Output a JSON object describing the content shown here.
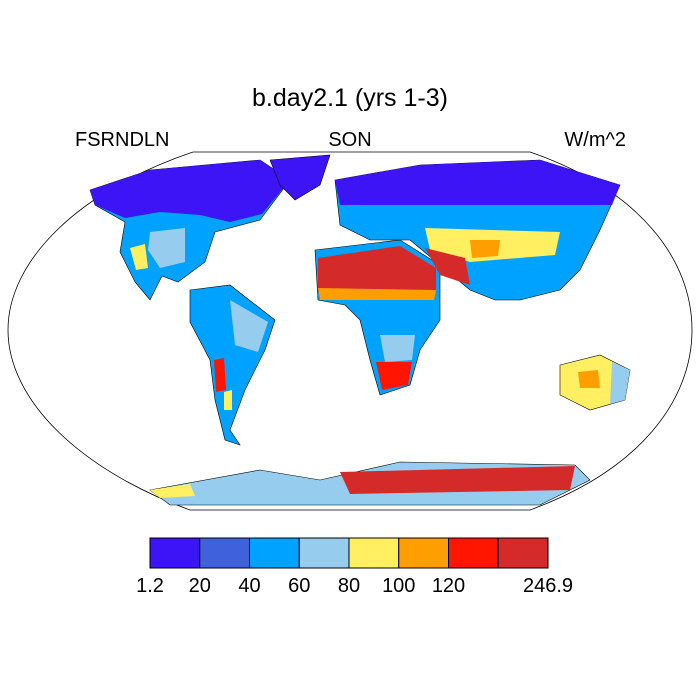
{
  "title": "b.day2.1 (yrs 1-3)",
  "left_string": "FSRNDLN",
  "center_string": "SON",
  "right_string": "W/m^2",
  "colorbar": {
    "colors": [
      "#3c14f5",
      "#3f62dc",
      "#00a2ff",
      "#96cdee",
      "#ffef61",
      "#ff9e00",
      "#ff1500",
      "#d42a2a"
    ],
    "labels": [
      1.2,
      20,
      40,
      60,
      80,
      100,
      120,
      null,
      246.9
    ]
  }
}
